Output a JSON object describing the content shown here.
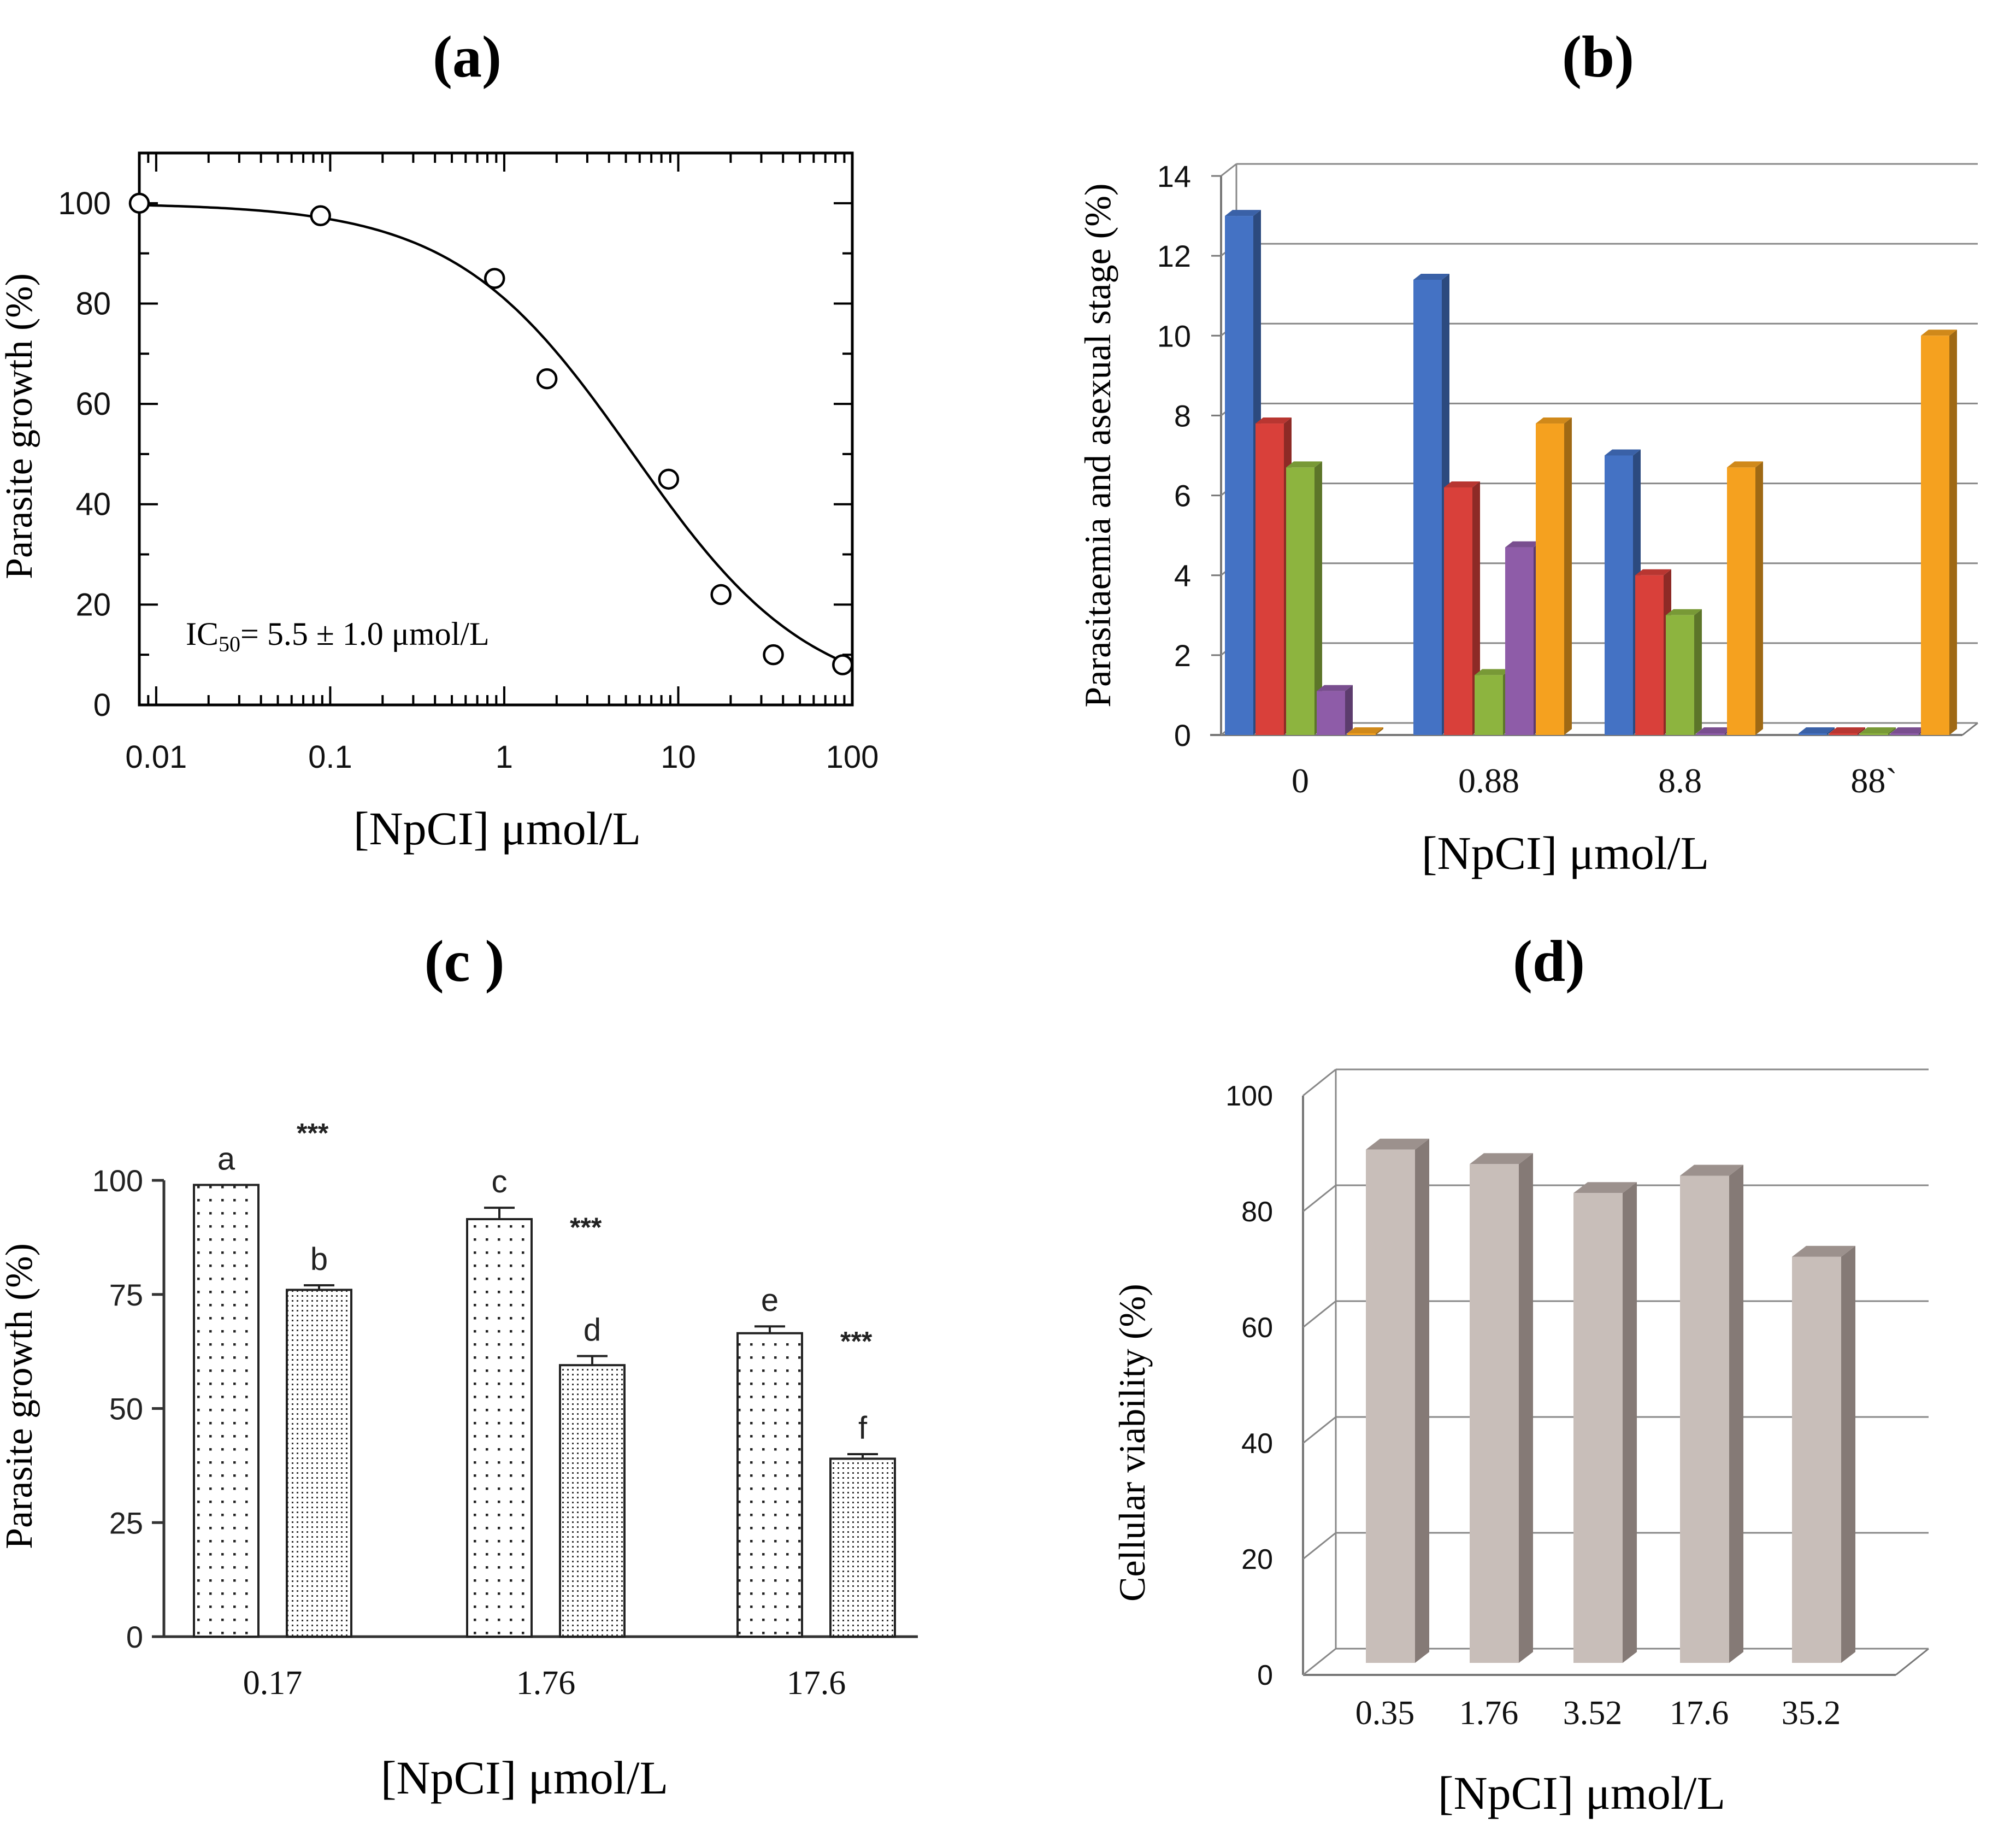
{
  "chart_data": [
    {
      "id": "a",
      "panel_label": "(a)",
      "type": "scatter",
      "x_scale": "log",
      "xlim": [
        0.008,
        100
      ],
      "ylim": [
        0,
        110
      ],
      "x_ticks": [
        0.01,
        0.1,
        1,
        10,
        100
      ],
      "x_tick_labels": [
        "0.01",
        "0.1",
        "1",
        "10",
        "100"
      ],
      "y_ticks": [
        0,
        20,
        40,
        60,
        80,
        100
      ],
      "y_tick_labels": [
        "0",
        "20",
        "40",
        "60",
        "80",
        "100"
      ],
      "xlabel": "[NpCI] μmol/L",
      "ylabel": "Parasite growth (%)",
      "annotation_prefix": "IC",
      "annotation_subscript": "50",
      "annotation_rest": "= 5.5 ± 1.0 μmol/L",
      "points": [
        {
          "x": 0.008,
          "y": 100
        },
        {
          "x": 0.088,
          "y": 97.5
        },
        {
          "x": 0.88,
          "y": 85
        },
        {
          "x": 1.76,
          "y": 65
        },
        {
          "x": 8.8,
          "y": 45
        },
        {
          "x": 17.6,
          "y": 22
        },
        {
          "x": 35.2,
          "y": 10
        },
        {
          "x": 88,
          "y": 8
        }
      ],
      "fit_curve": {
        "top": 100,
        "bottom": 0,
        "ic50": 5.5,
        "hill": 0.85
      }
    },
    {
      "id": "b",
      "panel_label": "(b)",
      "type": "bar",
      "style": "3d-clustered",
      "categories": [
        "0",
        "0.88",
        "8.8",
        "88`"
      ],
      "series": [
        {
          "name": "blue",
          "color": "#4472C4",
          "values": [
            13,
            11.4,
            7,
            0
          ]
        },
        {
          "name": "red",
          "color": "#D9403A",
          "values": [
            7.8,
            6.2,
            4,
            0
          ]
        },
        {
          "name": "green",
          "color": "#8DB43F",
          "values": [
            6.7,
            1.5,
            3,
            0
          ]
        },
        {
          "name": "purple",
          "color": "#8E5CA8",
          "values": [
            1.1,
            4.7,
            0,
            0
          ]
        },
        {
          "name": "orange",
          "color": "#F5A11F",
          "values": [
            0,
            7.8,
            6.7,
            10
          ]
        }
      ],
      "ylim": [
        0,
        14
      ],
      "y_ticks": [
        0,
        2,
        4,
        6,
        8,
        10,
        12,
        14
      ],
      "y_tick_labels": [
        "0",
        "2",
        "4",
        "6",
        "8",
        "10",
        "12",
        "14"
      ],
      "xlabel": "[NpCI] μmol/L",
      "ylabel": "Parasitaemia and asexual stage (%)"
    },
    {
      "id": "c",
      "panel_label": "(c )",
      "type": "bar",
      "style": "grouped-pattern",
      "categories": [
        "0.17",
        "1.76",
        "17.6"
      ],
      "series": [
        {
          "name": "sparse-dots",
          "values": [
            99,
            91.5,
            66.5
          ],
          "errors": [
            0,
            2.5,
            1.5
          ],
          "letters": [
            "a",
            "c",
            "e"
          ]
        },
        {
          "name": "dense-dots",
          "values": [
            76,
            59.5,
            39
          ],
          "errors": [
            1,
            2,
            1
          ],
          "letters": [
            "b",
            "d",
            "f"
          ]
        }
      ],
      "significance": "***",
      "ylim": [
        0,
        100
      ],
      "y_ticks": [
        0,
        25,
        50,
        75,
        100
      ],
      "y_tick_labels": [
        "0",
        "25",
        "50",
        "75",
        "100"
      ],
      "xlabel": "[NpCI] μmol/L",
      "ylabel": "Parasite growth (%)"
    },
    {
      "id": "d",
      "panel_label": "(d)",
      "type": "bar",
      "style": "3d",
      "categories": [
        "0.35",
        "1.76",
        "3.52",
        "17.6",
        "35.2"
      ],
      "values": [
        92,
        89.5,
        84.5,
        87.5,
        73.5
      ],
      "bar_color": "#C8BEB9",
      "ylim": [
        0,
        100
      ],
      "y_ticks": [
        0,
        20,
        40,
        60,
        80,
        100
      ],
      "y_tick_labels": [
        "0",
        "20",
        "40",
        "60",
        "80",
        "100"
      ],
      "xlabel": "[NpCI] μmol/L",
      "ylabel": "Cellular viability  (%)"
    }
  ]
}
